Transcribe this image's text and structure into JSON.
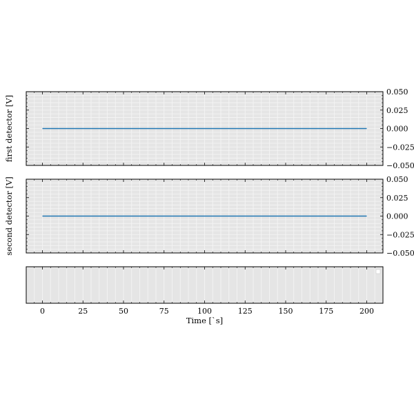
{
  "chart_data": {
    "type": "line",
    "xlabel": "Time [`s]",
    "x_ticks": [
      0,
      25,
      50,
      75,
      100,
      125,
      150,
      175,
      200
    ],
    "xlim": [
      -10,
      210
    ],
    "grid": true,
    "colors": {
      "background": "#e5e5e5",
      "grid": "#f5f5f5",
      "series": "#1f77b4",
      "frame": "#000000"
    },
    "panels": [
      {
        "ylabel": "first detector [V]",
        "ylim": [
          -0.05,
          0.05
        ],
        "y_ticks": [
          0.05,
          0.025,
          0.0,
          -0.025,
          -0.05
        ],
        "y_tick_labels": [
          "0.050",
          "0.025",
          "0.000",
          "−0.025",
          "−0.050"
        ],
        "series": [
          {
            "x": [
              0,
              200
            ],
            "y": [
              0.0,
              0.0
            ]
          }
        ]
      },
      {
        "ylabel": "second detector [V]",
        "ylim": [
          -0.05,
          0.05
        ],
        "y_ticks": [
          0.05,
          0.025,
          0.0,
          -0.025,
          -0.05
        ],
        "y_tick_labels": [
          "0.050",
          "0.025",
          "0.000",
          "−0.025",
          "−0.050"
        ],
        "series": [
          {
            "x": [
              0,
              200
            ],
            "y": [
              0.0,
              0.0
            ]
          }
        ]
      },
      {
        "ylabel": "",
        "series": [],
        "legend": "top-right",
        "legend_entries": []
      }
    ]
  }
}
